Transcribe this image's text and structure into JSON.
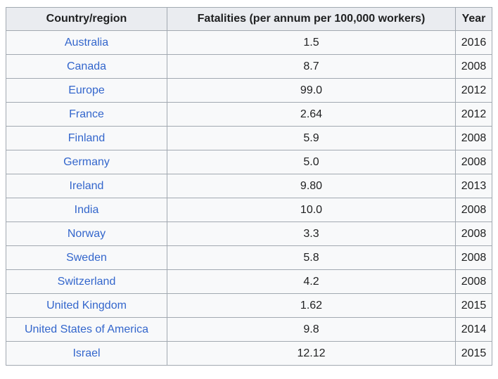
{
  "colors": {
    "header_bg": "#eaecf0",
    "cell_bg": "#f8f9fa",
    "border": "#a2a9b1",
    "link": "#3366cc",
    "text": "#202122"
  },
  "table": {
    "headers": [
      "Country/region",
      "Fatalities (per annum per 100,000 workers)",
      "Year"
    ],
    "rows": [
      {
        "country": "Australia",
        "fatalities": "1.5",
        "year": "2016"
      },
      {
        "country": "Canada",
        "fatalities": "8.7",
        "year": "2008"
      },
      {
        "country": "Europe",
        "fatalities": "99.0",
        "year": "2012"
      },
      {
        "country": "France",
        "fatalities": "2.64",
        "year": "2012"
      },
      {
        "country": "Finland",
        "fatalities": "5.9",
        "year": "2008"
      },
      {
        "country": "Germany",
        "fatalities": "5.0",
        "year": "2008"
      },
      {
        "country": "Ireland",
        "fatalities": "9.80",
        "year": "2013"
      },
      {
        "country": "India",
        "fatalities": "10.0",
        "year": "2008"
      },
      {
        "country": "Norway",
        "fatalities": "3.3",
        "year": "2008"
      },
      {
        "country": "Sweden",
        "fatalities": "5.8",
        "year": "2008"
      },
      {
        "country": "Switzerland",
        "fatalities": "4.2",
        "year": "2008"
      },
      {
        "country": "United Kingdom",
        "fatalities": "1.62",
        "year": "2015"
      },
      {
        "country": "United States of America",
        "fatalities": "9.8",
        "year": "2014"
      },
      {
        "country": "Israel",
        "fatalities": "12.12",
        "year": "2015"
      }
    ]
  },
  "chart_data": {
    "type": "table",
    "title": "Fatalities (per annum per 100,000 workers) by country/region",
    "columns": [
      "Country/region",
      "Fatalities (per annum per 100,000 workers)",
      "Year"
    ],
    "categories": [
      "Australia",
      "Canada",
      "Europe",
      "France",
      "Finland",
      "Germany",
      "Ireland",
      "India",
      "Norway",
      "Sweden",
      "Switzerland",
      "United Kingdom",
      "United States of America",
      "Israel"
    ],
    "series": [
      {
        "name": "Fatalities (per annum per 100,000 workers)",
        "values": [
          1.5,
          8.7,
          99.0,
          2.64,
          5.9,
          5.0,
          9.8,
          10.0,
          3.3,
          5.8,
          4.2,
          1.62,
          9.8,
          12.12
        ]
      },
      {
        "name": "Year",
        "values": [
          2016,
          2008,
          2012,
          2012,
          2008,
          2008,
          2013,
          2008,
          2008,
          2008,
          2008,
          2015,
          2014,
          2015
        ]
      }
    ]
  }
}
